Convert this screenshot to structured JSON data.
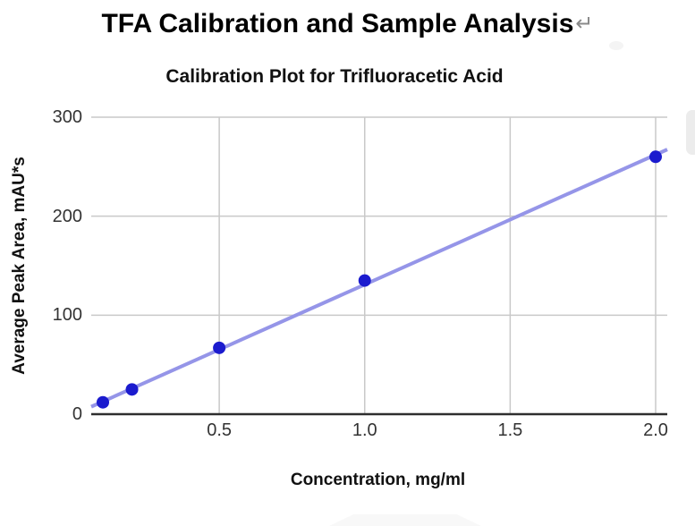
{
  "page": {
    "title": "TFA Calibration and Sample Analysis",
    "return_mark": "↵"
  },
  "chart_data": {
    "type": "scatter",
    "title": "Calibration Plot for Trifluoracetic Acid",
    "xlabel": "Concentration, mg/ml",
    "ylabel": "Average Peak Area, mAU*s",
    "x": [
      0.1,
      0.2,
      0.5,
      1.0,
      2.0
    ],
    "y": [
      12,
      25,
      67,
      135,
      260
    ],
    "trendline": {
      "type": "linear",
      "slope": 131.2,
      "intercept": -0.3
    },
    "xlim": [
      0.06,
      2.04
    ],
    "ylim": [
      0,
      300
    ],
    "x_ticks": [
      0.5,
      1.0,
      1.5,
      2.0
    ],
    "x_tick_labels": [
      "0.5",
      "1.0",
      "1.5",
      "2.0"
    ],
    "y_ticks": [
      0,
      100,
      200,
      300
    ],
    "y_tick_labels": [
      "0",
      "100",
      "200",
      "300"
    ],
    "grid": true,
    "legend": false,
    "colors": {
      "point": "#1b1bce",
      "trendline": "#9595e8",
      "gridline": "#c9c9c9",
      "axis_line": "#2e2e2e",
      "tick_text": "#333333",
      "title_text": "#000000",
      "return_mark": "#8a8a8a"
    }
  }
}
